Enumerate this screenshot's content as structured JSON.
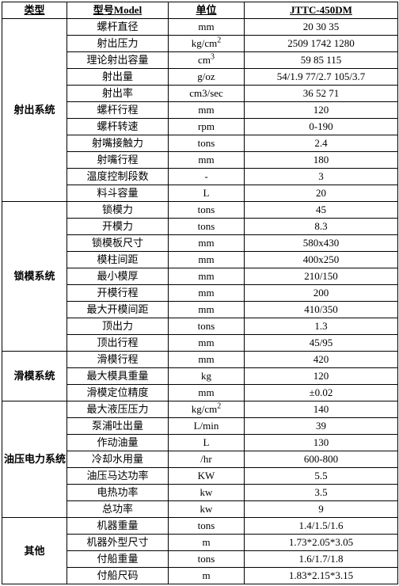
{
  "headers": {
    "category": "类型",
    "model": "型号Model",
    "unit": "单位",
    "value": "JTTC-450DM"
  },
  "sections": [
    {
      "category": "射出系统",
      "rows": [
        {
          "model": "螺杆直径",
          "unit": "mm",
          "value": "20   30   35"
        },
        {
          "model": "射出压力",
          "unit": "kg/cm²",
          "value": "2509  1742  1280"
        },
        {
          "model": "理论射出容量",
          "unit": "cm³",
          "value": "59   85   115"
        },
        {
          "model": "射出量",
          "unit": "g/oz",
          "value": "54/1.9 77/2.7 105/3.7"
        },
        {
          "model": "射出率",
          "unit": "cm3/sec",
          "value": "36   52   71"
        },
        {
          "model": "螺杆行程",
          "unit": "mm",
          "value": "120"
        },
        {
          "model": "螺杆转速",
          "unit": "rpm",
          "value": "0-190"
        },
        {
          "model": "射嘴接触力",
          "unit": "tons",
          "value": "2.4"
        },
        {
          "model": "射嘴行程",
          "unit": "mm",
          "value": "180"
        },
        {
          "model": "温度控制段数",
          "unit": "-",
          "value": "3"
        },
        {
          "model": "料斗容量",
          "unit": "L",
          "value": "20"
        }
      ]
    },
    {
      "category": "锁模系统",
      "rows": [
        {
          "model": "锁模力",
          "unit": "tons",
          "value": "45"
        },
        {
          "model": "开模力",
          "unit": "tons",
          "value": "8.3"
        },
        {
          "model": "锁模板尺寸",
          "unit": "mm",
          "value": "580x430"
        },
        {
          "model": "模柱间距",
          "unit": "mm",
          "value": "400x250"
        },
        {
          "model": "最小模厚",
          "unit": "mm",
          "value": "210/150"
        },
        {
          "model": "开模行程",
          "unit": "mm",
          "value": "200"
        },
        {
          "model": "最大开模间距",
          "unit": "mm",
          "value": "410/350"
        },
        {
          "model": "顶出力",
          "unit": "tons",
          "value": "1.3"
        },
        {
          "model": "顶出行程",
          "unit": "mm",
          "value": "45/95"
        }
      ]
    },
    {
      "category": "滑模系统",
      "rows": [
        {
          "model": "滑模行程",
          "unit": "mm",
          "value": "420"
        },
        {
          "model": "最大模具重量",
          "unit": "kg",
          "value": "120"
        },
        {
          "model": "滑模定位精度",
          "unit": "mm",
          "value": "±0.02"
        }
      ]
    },
    {
      "category": "油压电力系统",
      "rows": [
        {
          "model": "最大液压压力",
          "unit": "kg/cm²",
          "value": "140"
        },
        {
          "model": "泵浦吐出量",
          "unit": "L/min",
          "value": "39"
        },
        {
          "model": "作动油量",
          "unit": "L",
          "value": "130"
        },
        {
          "model": "冷却水用量",
          "unit": "/hr",
          "value": "600-800"
        },
        {
          "model": "油压马达功率",
          "unit": "KW",
          "value": "5.5"
        },
        {
          "model": "电热功率",
          "unit": "kw",
          "value": "3.5"
        },
        {
          "model": "总功率",
          "unit": "kw",
          "value": "9"
        }
      ]
    },
    {
      "category": "其他",
      "rows": [
        {
          "model": "机器重量",
          "unit": "tons",
          "value": "1.4/1.5/1.6"
        },
        {
          "model": "机器外型尺寸",
          "unit": "m",
          "value": "1.73*2.05*3.05"
        },
        {
          "model": "付船重量",
          "unit": "tons",
          "value": "1.6/1.7/1.8"
        },
        {
          "model": "付船尺码",
          "unit": "m",
          "value": "1.83*2.15*3.15"
        }
      ]
    }
  ]
}
